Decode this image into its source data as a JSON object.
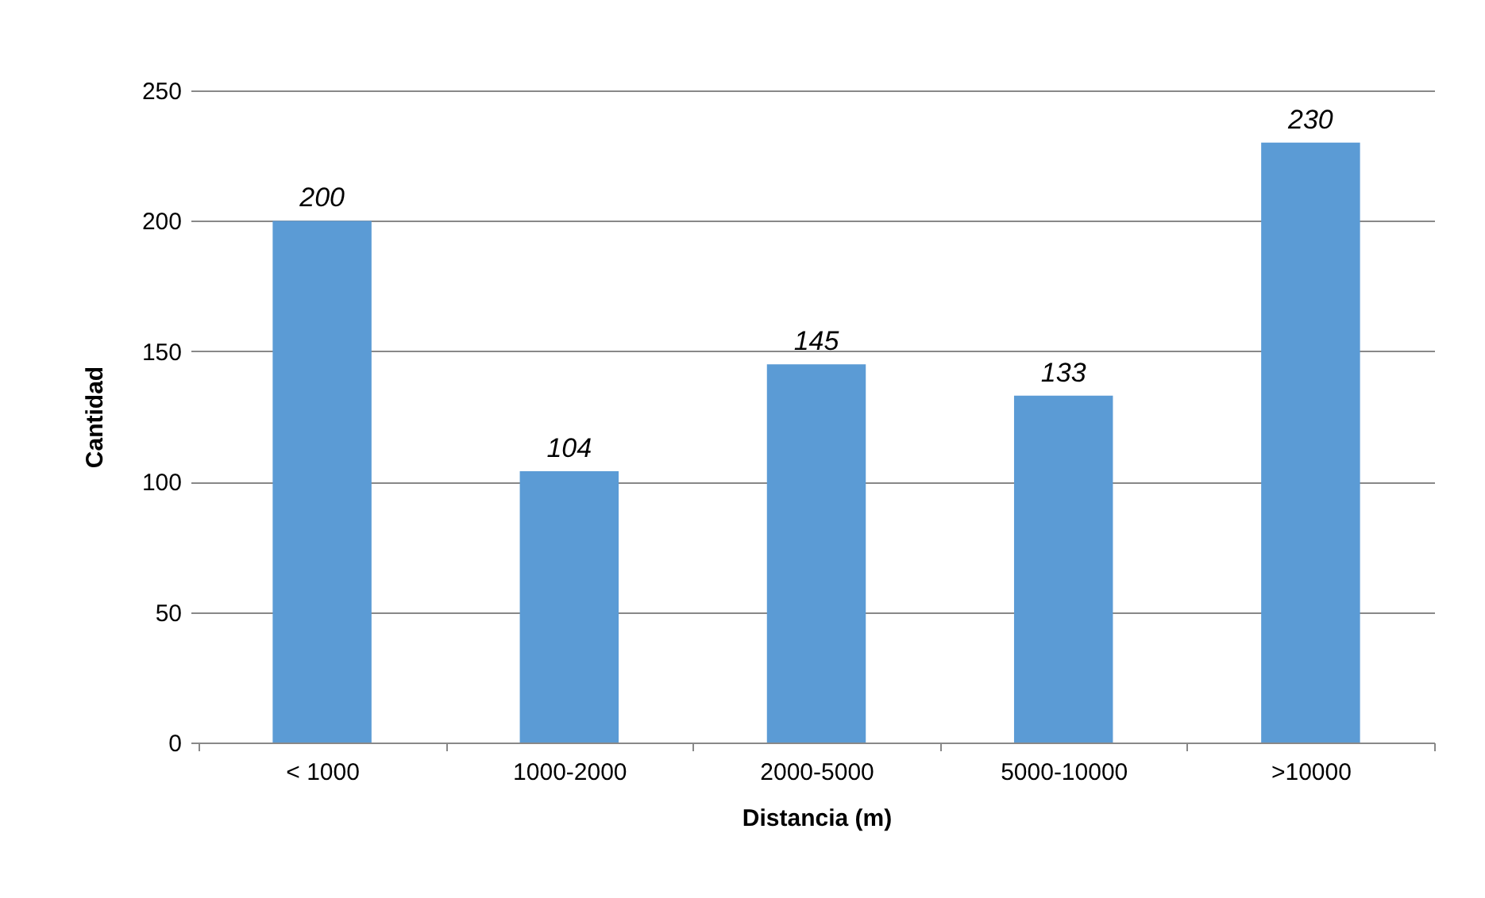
{
  "chart_data": {
    "type": "bar",
    "xlabel": "Distancia (m)",
    "ylabel": "Cantidad",
    "categories": [
      "< 1000",
      "1000-2000",
      "2000-5000",
      "5000-10000",
      ">10000"
    ],
    "values": [
      200,
      104,
      145,
      133,
      230
    ],
    "color": "#5b9bd5",
    "ylim": [
      0,
      250
    ],
    "yticks": [
      0,
      50,
      100,
      150,
      200,
      250
    ],
    "grid": "y",
    "data_labels": true
  }
}
